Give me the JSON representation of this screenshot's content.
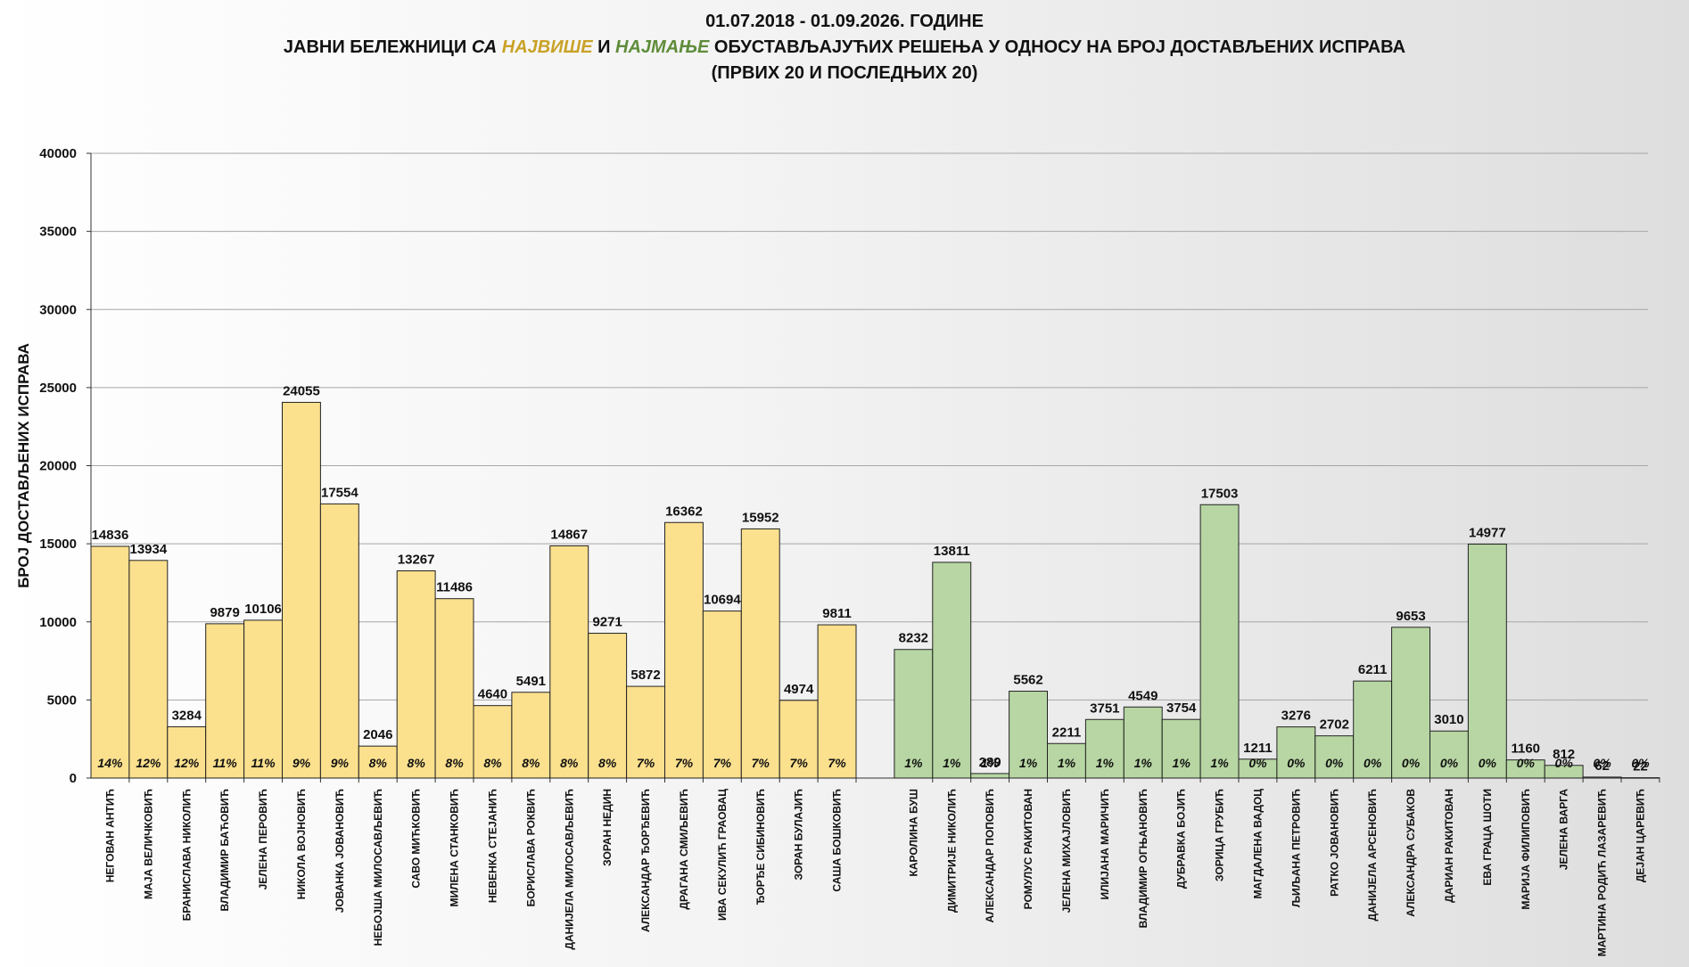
{
  "title": {
    "line1": "01.07.2018  - 01.09.2026.  ГОДИНЕ",
    "line2_part1": "ЈАВНИ БЕЛЕЖНИЦИ ",
    "line2_sa": "СА ",
    "line2_most": "НАЈВИШЕ",
    "line2_and": " И ",
    "line2_least": "НАЈМАЊЕ",
    "line2_rest": " ОБУСТАВЉАЈУЋИХ РЕШЕЊА У ОДНОСУ НА БРОЈ ДОСТАВЉЕНИХ ИСПРАВА",
    "line3": "(ПРВИХ 20 И ПОСЛЕДЊИХ 20)"
  },
  "chart_data": {
    "type": "bar",
    "ylabel": "БРОЈ ДОСТАВЉЕНИХ ИСПРАВА",
    "xlabel": "",
    "ylim": [
      0,
      40000
    ],
    "yticks": [
      0,
      5000,
      10000,
      15000,
      20000,
      25000,
      30000,
      35000,
      40000
    ],
    "grid": true,
    "colors": {
      "top": "#fbe08e",
      "bottom": "#b7d6a3",
      "stroke": "#222222",
      "grid": "#a6a6a6"
    },
    "series": [
      {
        "group": "top",
        "categories": [
          "НЕГОВАН АНТИЋ",
          "МАЈА ВЕЛИЧКОВИЋ",
          "БРАНИСЛАВА  НИКОЛИЋ",
          "ВЛАДИМИР  БАЋОВИЋ",
          "ЈЕЛЕНА ПЕРОВИЋ",
          "НИКОЛА ВОЈНОВИЋ",
          "ЈОВАНКА  ЈОВАНОВИЋ",
          "НЕБОЈША МИЛОСАВЉЕВИЋ",
          "САВО МИЋКОВИЋ",
          "МИЛЕНА СТАНКОВИЋ",
          "НЕВЕНКА СТЕЈАНИЋ",
          "БОРИСЛАВА  РОКВИЋ",
          "ДАНИЈЕЛА  МИЛОСАВЉЕВИЋ",
          "ЗОРАН НЕДИН",
          "АЛЕКСАНДАР  ЂОРЂЕВИЋ",
          "ДРАГАНА СМИЉЕВИЋ",
          "ИВА СЕКУЛИЋ ГРАОВАЦ",
          "ЂОРЂЕ СИБИНОВИЋ",
          "ЗОРАН БУЛАЈИЋ",
          "САША БОШКОВИЋ"
        ],
        "values": [
          14836,
          13934,
          3284,
          9879,
          10106,
          24055,
          17554,
          2046,
          13267,
          11486,
          4640,
          5491,
          14867,
          9271,
          5872,
          16362,
          10694,
          15952,
          4974,
          9811
        ],
        "percent_labels": [
          "14%",
          "12%",
          "12%",
          "11%",
          "11%",
          "9%",
          "9%",
          "8%",
          "8%",
          "8%",
          "8%",
          "8%",
          "8%",
          "8%",
          "7%",
          "7%",
          "7%",
          "7%",
          "7%",
          "7%"
        ]
      },
      {
        "group": "bottom",
        "categories": [
          "КАРОЛИНА БУШ",
          "ДИМИТРИЈЕ НИКОЛИЋ",
          "АЛЕКСАНДАР ПОПОВИЋ",
          "РОМУЛУС РАКИТОВАН",
          "ЈЕЛЕНА МИХАЈЛОВИЋ",
          "ИЛИЈАНА МАРИЧИЋ",
          "ВЛАДИМИР ОГЊАНОВИЋ",
          "ДУБРАВКА БОЈИЋ",
          "ЗОРИЦА ГРУБИЋ",
          "МАГДАЛЕНА ВАДОЦ",
          "ЉИЉАНА ПЕТРОВИЋ",
          "РАТКО ЈОВАНОВИЋ",
          "ДАНИЈЕЛА  АРСЕНОВИЋ",
          "АЛЕКСАНДРА СУБАКОВ",
          "ДАРИАН РАКИТОВАН",
          "ЕВА ГРАЦА ШОТИ",
          "МАРИЈА ФИЛИПОВИЋ",
          "ЈЕЛЕНА ВАРГА",
          "МАРТИНА РОДИЋ ЛАЗАРЕВИЋ",
          "ДЕЈАН ЦАРЕВИЋ"
        ],
        "values": [
          8232,
          13811,
          289,
          5562,
          2211,
          3751,
          4549,
          3754,
          17503,
          1211,
          3276,
          2702,
          6211,
          9653,
          3010,
          14977,
          1160,
          812,
          62,
          22
        ],
        "percent_labels": [
          "1%",
          "1%",
          "1%",
          "1%",
          "1%",
          "1%",
          "1%",
          "1%",
          "1%",
          "0%",
          "0%",
          "0%",
          "0%",
          "0%",
          "0%",
          "0%",
          "0%",
          "0%",
          "0%",
          "0%"
        ]
      }
    ]
  }
}
